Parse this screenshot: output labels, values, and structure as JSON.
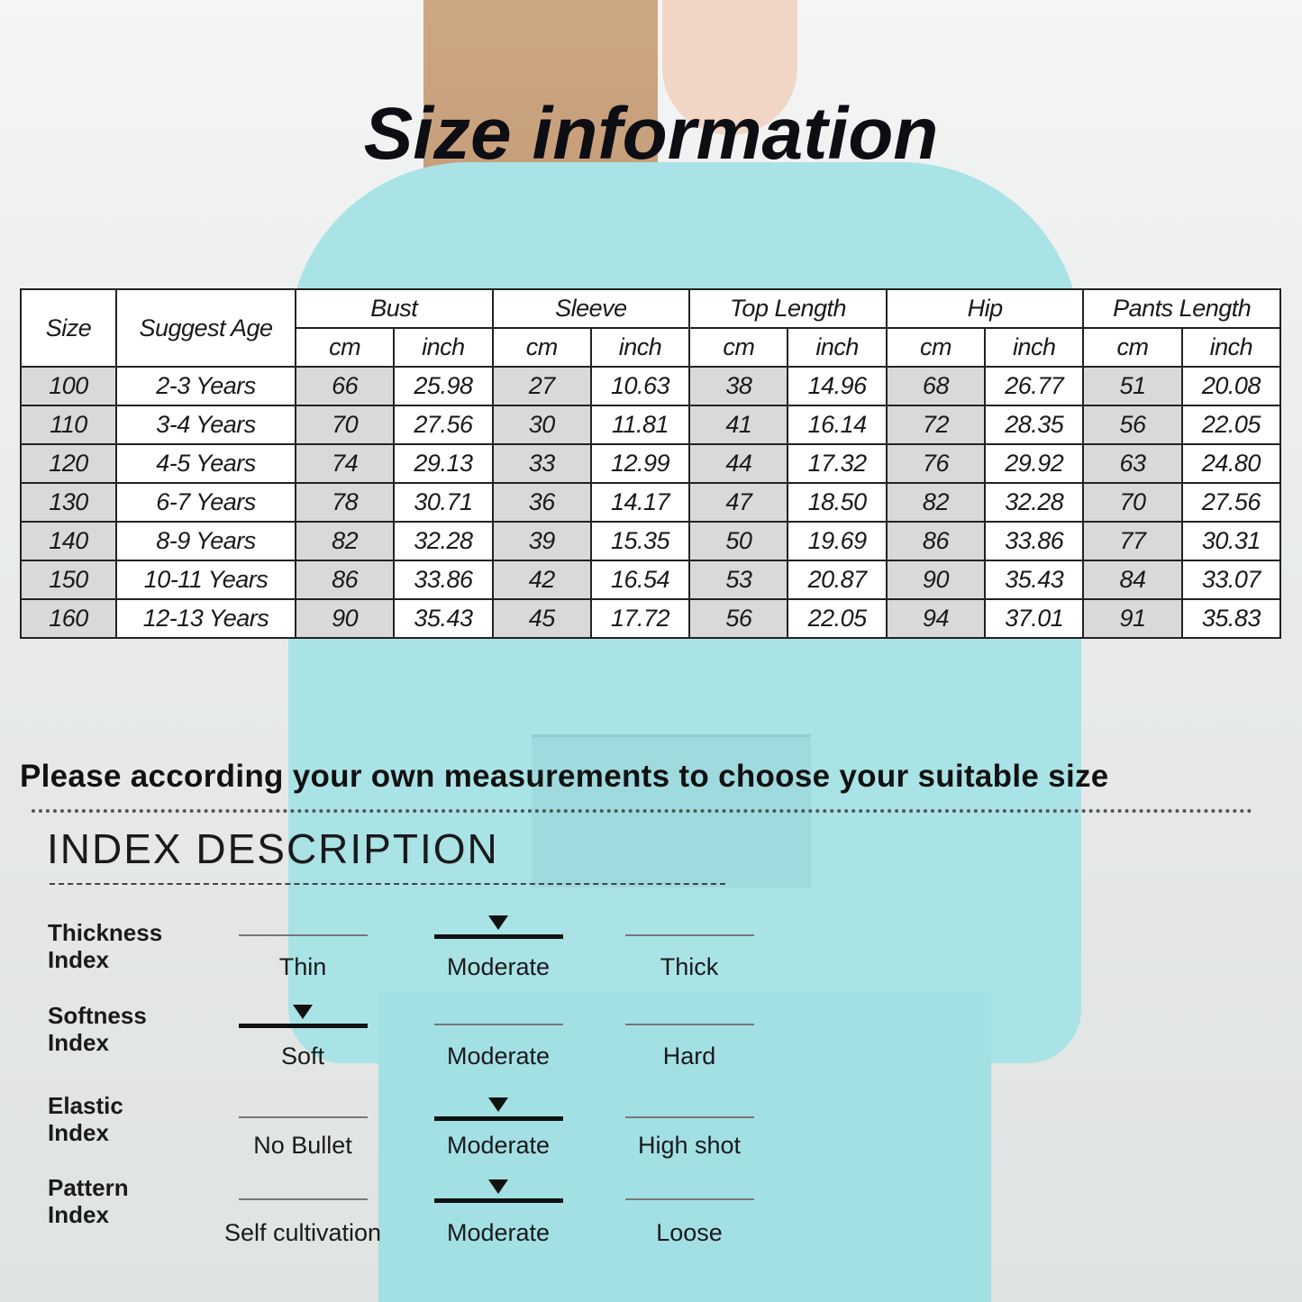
{
  "title": "Size information",
  "table": {
    "headers": {
      "size": "Size",
      "age": "Suggest Age",
      "groups": [
        "Bust",
        "Sleeve",
        "Top Length",
        "Hip",
        "Pants Length"
      ],
      "units": [
        "cm",
        "inch"
      ]
    },
    "rows": [
      [
        "100",
        "2-3 Years",
        "66",
        "25.98",
        "27",
        "10.63",
        "38",
        "14.96",
        "68",
        "26.77",
        "51",
        "20.08"
      ],
      [
        "110",
        "3-4 Years",
        "70",
        "27.56",
        "30",
        "11.81",
        "41",
        "16.14",
        "72",
        "28.35",
        "56",
        "22.05"
      ],
      [
        "120",
        "4-5 Years",
        "74",
        "29.13",
        "33",
        "12.99",
        "44",
        "17.32",
        "76",
        "29.92",
        "63",
        "24.80"
      ],
      [
        "130",
        "6-7 Years",
        "78",
        "30.71",
        "36",
        "14.17",
        "47",
        "18.50",
        "82",
        "32.28",
        "70",
        "27.56"
      ],
      [
        "140",
        "8-9 Years",
        "82",
        "32.28",
        "39",
        "15.35",
        "50",
        "19.69",
        "86",
        "33.86",
        "77",
        "30.31"
      ],
      [
        "150",
        "10-11 Years",
        "86",
        "33.86",
        "42",
        "16.54",
        "53",
        "20.87",
        "90",
        "35.43",
        "84",
        "33.07"
      ],
      [
        "160",
        "12-13 Years",
        "90",
        "35.43",
        "45",
        "17.72",
        "56",
        "22.05",
        "94",
        "37.01",
        "91",
        "35.83"
      ]
    ]
  },
  "note": "Please according your own measurements to choose your suitable size",
  "index": {
    "title": "INDEX DESCRIPTION",
    "items": [
      {
        "label1": "Thickness",
        "label2": "Index",
        "options": [
          "Thin",
          "Moderate",
          "Thick"
        ],
        "selected": 1
      },
      {
        "label1": "Softness",
        "label2": "Index",
        "options": [
          "Soft",
          "Moderate",
          "Hard"
        ],
        "selected": 0
      },
      {
        "label1": "Elastic",
        "label2": "Index",
        "options": [
          "No Bullet",
          "Moderate",
          "High shot"
        ],
        "selected": 1
      },
      {
        "label1": "Pattern",
        "label2": "Index",
        "options": [
          "Self cultivation",
          "Moderate",
          "Loose"
        ],
        "selected": 1
      }
    ]
  },
  "colors": {
    "garment": "#a9e3e6",
    "cell_shade": "#d9d9d9"
  }
}
